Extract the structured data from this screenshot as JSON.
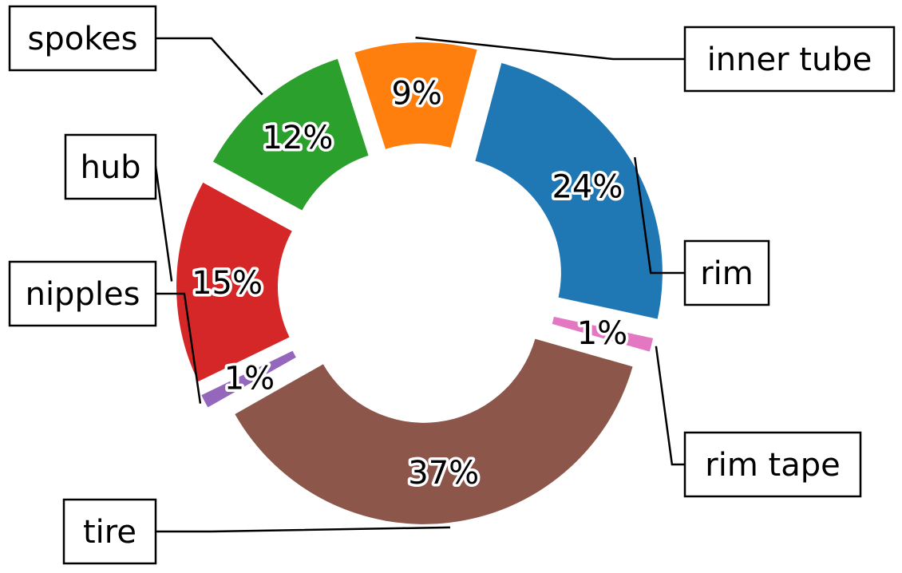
{
  "chart_data": {
    "type": "pie",
    "variant": "donut",
    "title": "",
    "categories": [
      "rim",
      "rim tape",
      "tire",
      "nipples",
      "hub",
      "spokes",
      "inner tube"
    ],
    "values": [
      24,
      1,
      37,
      1,
      15,
      12,
      9
    ],
    "value_labels": [
      "24%",
      "1%",
      "37%",
      "1%",
      "15%",
      "12%",
      "9%"
    ],
    "colors": [
      "#1f77b4",
      "#e377c2",
      "#8c564b",
      "#9467bd",
      "#d62728",
      "#2ca02c",
      "#ff7f0e"
    ],
    "legend": "none"
  }
}
